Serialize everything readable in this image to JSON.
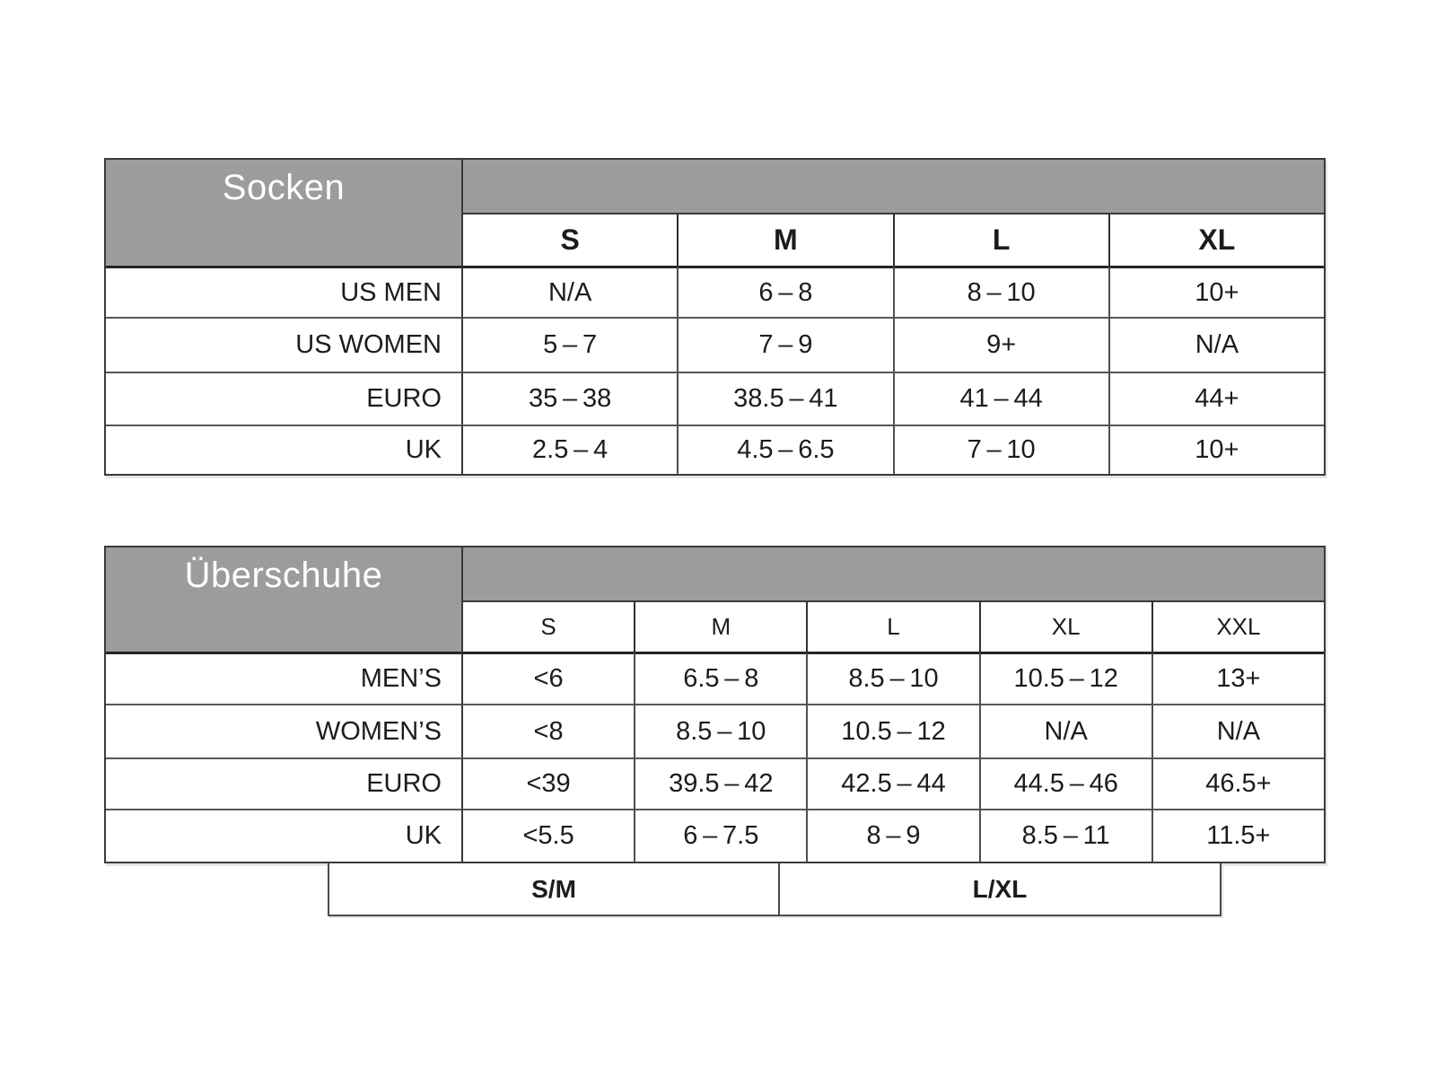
{
  "colors": {
    "header_gray": "#9c9c9c",
    "border_dark": "#3a3a3a",
    "border_mid": "#575757",
    "text": "#1c1c1c",
    "header_text": "#ffffff",
    "background": "#ffffff"
  },
  "chart_data": [
    {
      "type": "table",
      "title": "Socken",
      "columns": [
        "S",
        "M",
        "L",
        "XL"
      ],
      "rows": [
        {
          "label": "US MEN",
          "values": [
            "N/A",
            "6 – 8",
            "8 – 10",
            "10+"
          ]
        },
        {
          "label": "US WOMEN",
          "values": [
            "5 – 7",
            "7 – 9",
            "9+",
            "N/A"
          ]
        },
        {
          "label": "EURO",
          "values": [
            "35 – 38",
            "38.5 – 41",
            "41 – 44",
            "44+"
          ]
        },
        {
          "label": "UK",
          "values": [
            "2.5 – 4",
            "4.5 – 6.5",
            "7 – 10",
            "10+"
          ]
        }
      ]
    },
    {
      "type": "table",
      "title": "Überschuhe",
      "columns": [
        "S",
        "M",
        "L",
        "XL",
        "XXL"
      ],
      "rows": [
        {
          "label": "MEN’S",
          "values": [
            "<6",
            "6.5 – 8",
            "8.5 – 10",
            "10.5 – 12",
            "13+"
          ]
        },
        {
          "label": "WOMEN’S",
          "values": [
            "<8",
            "8.5 – 10",
            "10.5 – 12",
            "N/A",
            "N/A"
          ]
        },
        {
          "label": "EURO",
          "values": [
            "<39",
            "39.5 – 42",
            "42.5 – 44",
            "44.5 – 46",
            "46.5+"
          ]
        },
        {
          "label": "UK",
          "values": [
            "<5.5",
            "6 – 7.5",
            "8 – 9",
            "8.5 – 11",
            "11.5+"
          ]
        }
      ],
      "group_labels": [
        "S/M",
        "L/XL"
      ]
    }
  ]
}
